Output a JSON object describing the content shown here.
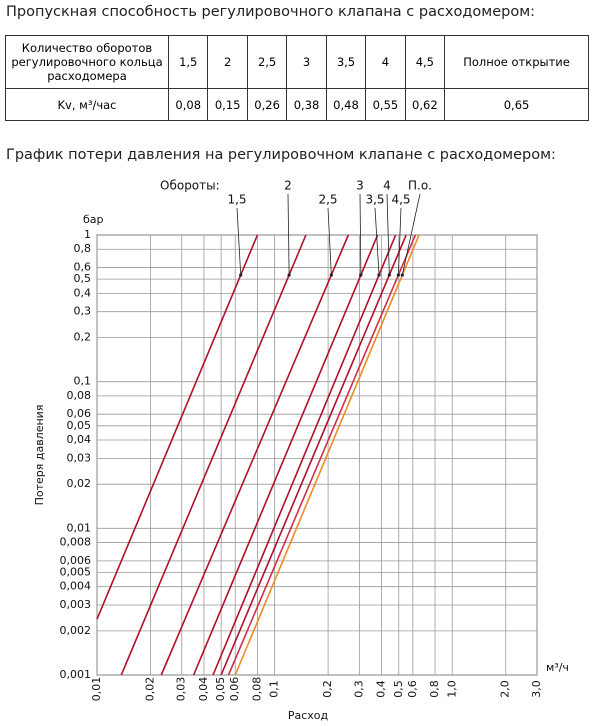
{
  "table_title": "Пропускная способность регулировочного клапана с расходомером:",
  "table": {
    "rows": [
      [
        "Количество оборотов регулировочного кольца расходомера",
        "1,5",
        "2",
        "2,5",
        "3",
        "3,5",
        "4",
        "4,5",
        "Полное открытие"
      ],
      [
        "Kv, м³/час",
        "0,08",
        "0,15",
        "0,26",
        "0,38",
        "0,48",
        "0,55",
        "0,62",
        "0,65"
      ]
    ]
  },
  "chart_data": {
    "type": "line",
    "title": "График потери давления на регулировочном клапане с расходомером:",
    "legend_title": "Обороты:",
    "y_unit": "бар",
    "x_unit": "м³/ч",
    "xlabel": "Расход",
    "ylabel": "Потеря давления",
    "xscale": "log",
    "yscale": "log",
    "grid": true,
    "xlim": [
      0.01,
      3.0
    ],
    "ylim": [
      0.001,
      1
    ],
    "xticks": [
      {
        "value": 0.01,
        "label": "0,01"
      },
      {
        "value": 0.02,
        "label": "0,02"
      },
      {
        "value": 0.03,
        "label": "0,03"
      },
      {
        "value": 0.04,
        "label": "0,04"
      },
      {
        "value": 0.05,
        "label": "0,05"
      },
      {
        "value": 0.06,
        "label": "0,06"
      },
      {
        "value": 0.08,
        "label": "0,08"
      },
      {
        "value": 0.1,
        "label": "0,1"
      },
      {
        "value": 0.2,
        "label": "0,2"
      },
      {
        "value": 0.3,
        "label": "0,3"
      },
      {
        "value": 0.4,
        "label": "0,4"
      },
      {
        "value": 0.5,
        "label": "0,5"
      },
      {
        "value": 0.6,
        "label": "0,6"
      },
      {
        "value": 0.8,
        "label": "0,8"
      },
      {
        "value": 1.0,
        "label": "1,0"
      },
      {
        "value": 2.0,
        "label": "2,0"
      },
      {
        "value": 3.0,
        "label": "3,0"
      }
    ],
    "yticks": [
      1,
      {
        "value": 0.8,
        "label": "0,8"
      },
      {
        "value": 0.6,
        "label": "0,6"
      },
      {
        "value": 0.5,
        "label": "0,5"
      },
      {
        "value": 0.4,
        "label": "0,4"
      },
      {
        "value": 0.3,
        "label": "0,3"
      },
      {
        "value": 0.2,
        "label": "0,2"
      },
      {
        "value": 0.1,
        "label": "0,1"
      },
      {
        "value": 0.08,
        "label": "0,08"
      },
      {
        "value": 0.06,
        "label": "0,06"
      },
      {
        "value": 0.05,
        "label": "0,05"
      },
      {
        "value": 0.04,
        "label": "0,04"
      },
      {
        "value": 0.03,
        "label": "0,03"
      },
      {
        "value": 0.02,
        "label": "0,02"
      },
      {
        "value": 0.01,
        "label": "0,01"
      },
      {
        "value": 0.008,
        "label": "0,008"
      },
      {
        "value": 0.006,
        "label": "0,006"
      },
      {
        "value": 0.005,
        "label": "0,005"
      },
      {
        "value": 0.004,
        "label": "0,004"
      },
      {
        "value": 0.003,
        "label": "0,003"
      },
      {
        "value": 0.002,
        "label": "0,002"
      },
      {
        "value": 0.001,
        "label": "0,001"
      }
    ],
    "series": [
      {
        "name": "1,5",
        "color": "#b0102a",
        "x": [
          0.01,
          0.08
        ],
        "values": [
          0.0024,
          1
        ]
      },
      {
        "name": "2",
        "color": "#b0102a",
        "x": [
          0.0137,
          0.15
        ],
        "values": [
          0.001,
          1
        ]
      },
      {
        "name": "2,5",
        "color": "#b0102a",
        "x": [
          0.023,
          0.26
        ],
        "values": [
          0.001,
          1
        ]
      },
      {
        "name": "3",
        "color": "#b0102a",
        "x": [
          0.035,
          0.38
        ],
        "values": [
          0.001,
          1
        ]
      },
      {
        "name": "3,5",
        "color": "#b0102a",
        "x": [
          0.045,
          0.48
        ],
        "values": [
          0.001,
          1
        ]
      },
      {
        "name": "4",
        "color": "#b0102a",
        "x": [
          0.05,
          0.55
        ],
        "values": [
          0.001,
          1
        ]
      },
      {
        "name": "4,5",
        "color": "#d0304a",
        "x": [
          0.055,
          0.62
        ],
        "values": [
          0.001,
          1
        ]
      },
      {
        "name": "П.о.",
        "color": "#f08a20",
        "x": [
          0.06,
          0.65
        ],
        "values": [
          0.001,
          1
        ]
      }
    ]
  }
}
